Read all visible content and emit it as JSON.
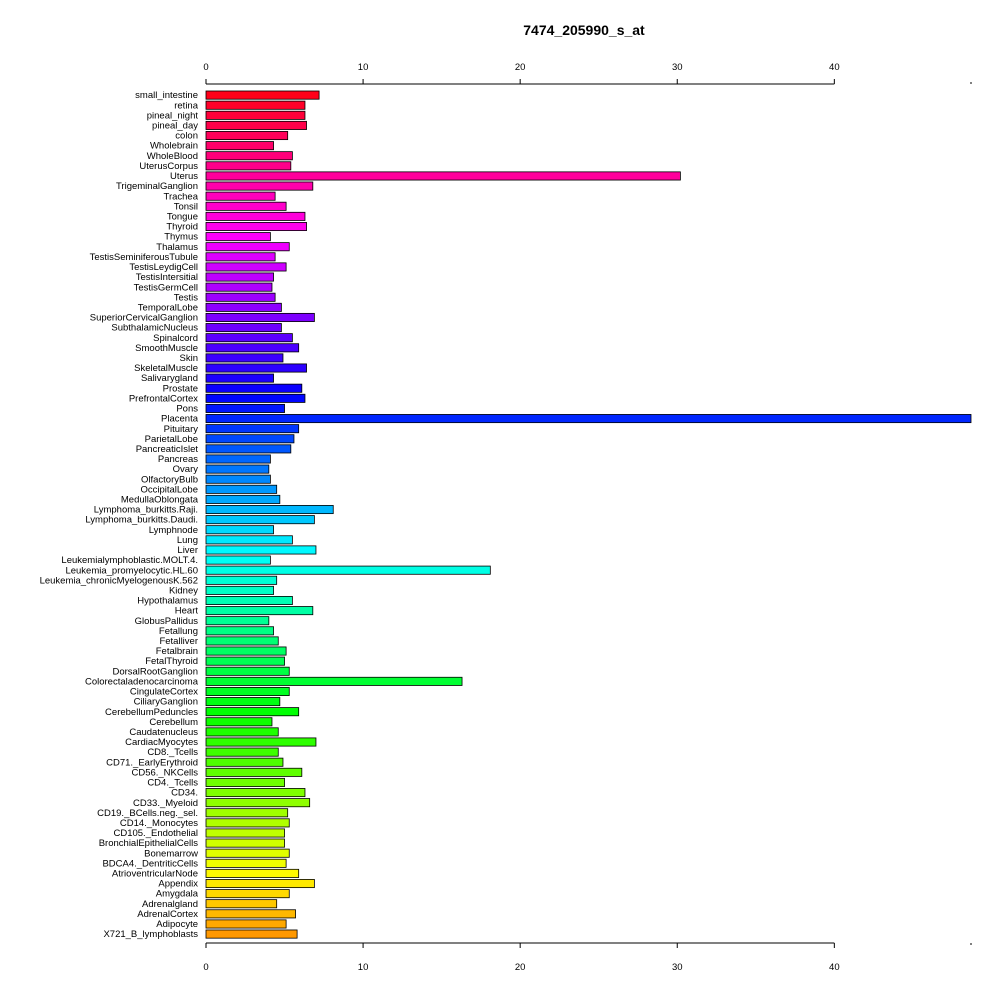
{
  "chart_data": {
    "type": "bar",
    "orientation": "horizontal",
    "title": "7474_205990_s_at",
    "xlabel": "",
    "ylabel": "",
    "xlim": [
      0,
      48.7
    ],
    "x_ticks": [
      0,
      10,
      20,
      30,
      40
    ],
    "grid": false,
    "legend": "none",
    "bar_stroke": "#000000",
    "categories": [
      "small_intestine",
      "retina",
      "pineal_night",
      "pineal_day",
      "colon",
      "Wholebrain",
      "WholeBlood",
      "UterusCorpus",
      "Uterus",
      "TrigeminalGanglion",
      "Trachea",
      "Tonsil",
      "Tongue",
      "Thyroid",
      "Thymus",
      "Thalamus",
      "TestisSeminiferousTubule",
      "TestisLeydigCell",
      "TestisIntersitial",
      "TestisGermCell",
      "Testis",
      "TemporalLobe",
      "SuperiorCervicalGanglion",
      "SubthalamicNucleus",
      "Spinalcord",
      "SmoothMuscle",
      "Skin",
      "SkeletalMuscle",
      "Salivarygland",
      "Prostate",
      "PrefrontalCortex",
      "Pons",
      "Placenta",
      "Pituitary",
      "ParietalLobe",
      "PancreaticIslet",
      "Pancreas",
      "Ovary",
      "OlfactoryBulb",
      "OccipitalLobe",
      "MedullaOblongata",
      "Lymphoma_burkitts.Raji.",
      "Lymphoma_burkitts.Daudi.",
      "Lymphnode",
      "Lung",
      "Liver",
      "Leukemialymphoblastic.MOLT.4.",
      "Leukemia_promyelocytic.HL.60",
      "Leukemia_chronicMyelogenousK.562",
      "Kidney",
      "Hypothalamus",
      "Heart",
      "GlobusPallidus",
      "Fetallung",
      "Fetalliver",
      "Fetalbrain",
      "FetalThyroid",
      "DorsalRootGanglion",
      "Colorectaladenocarcinoma",
      "CingulateCortex",
      "CiliaryGanglion",
      "CerebellumPeduncles",
      "Cerebellum",
      "Caudatenucleus",
      "CardiacMyocytes",
      "CD8._Tcells",
      "CD71._EarlyErythroid",
      "CD56._NKCells",
      "CD4._Tcells",
      "CD34.",
      "CD33._Myeloid",
      "CD19._BCells.neg._sel.",
      "CD14._Monocytes",
      "CD105._Endothelial",
      "BronchialEpithelialCells",
      "Bonemarrow",
      "BDCA4._DentriticCells",
      "AtrioventricularNode",
      "Appendix",
      "Amygdala",
      "Adrenalgland",
      "AdrenalCortex",
      "Adipocyte",
      "X721_B_lymphoblasts"
    ],
    "values": [
      7.2,
      6.3,
      6.3,
      6.4,
      5.2,
      4.3,
      5.5,
      5.4,
      30.2,
      6.8,
      4.4,
      5.1,
      6.3,
      6.4,
      4.1,
      5.3,
      4.4,
      5.1,
      4.3,
      4.2,
      4.4,
      4.8,
      6.9,
      4.8,
      5.5,
      5.9,
      4.9,
      6.4,
      4.3,
      6.1,
      6.3,
      5.0,
      48.7,
      5.9,
      5.6,
      5.4,
      4.1,
      4.0,
      4.1,
      4.5,
      4.7,
      8.1,
      6.9,
      4.3,
      5.5,
      7.0,
      4.1,
      18.1,
      4.5,
      4.3,
      5.5,
      6.8,
      4.0,
      4.3,
      4.6,
      5.1,
      5.0,
      5.3,
      16.3,
      5.3,
      4.7,
      5.9,
      4.2,
      4.6,
      7.0,
      4.6,
      4.9,
      6.1,
      5.0,
      6.3,
      6.6,
      5.2,
      5.3,
      5.0,
      5.0,
      5.3,
      5.1,
      5.9,
      6.9,
      5.3,
      4.5,
      5.7,
      5.1,
      5.8
    ],
    "colors": [
      "#FF0019",
      "#FF0029",
      "#FF0039",
      "#FF0049",
      "#FF005A",
      "#FF006A",
      "#FF007A",
      "#FF008A",
      "#FF009B",
      "#FF00AB",
      "#FF00BB",
      "#FF00CB",
      "#FF00DB",
      "#FF00EC",
      "#FF00FC",
      "#EF00FF",
      "#DE00FF",
      "#CE00FF",
      "#BE00FF",
      "#AE00FF",
      "#9D00FF",
      "#8D00FF",
      "#7D00FF",
      "#6D00FF",
      "#5C00FF",
      "#4C00FF",
      "#3C00FF",
      "#2C00FF",
      "#1C00FF",
      "#0B00FF",
      "#0006FF",
      "#0016FF",
      "#0026FF",
      "#0036FF",
      "#0047FF",
      "#0057FF",
      "#0067FF",
      "#0077FF",
      "#0088FF",
      "#0098FF",
      "#00A8FF",
      "#00B8FF",
      "#00C8FF",
      "#00D9FF",
      "#00E9FF",
      "#00F9FF",
      "#00FFF5",
      "#00FFE5",
      "#00FFD5",
      "#00FFC5",
      "#00FFB4",
      "#00FFA4",
      "#00FF94",
      "#00FF84",
      "#00FF73",
      "#00FF63",
      "#00FF53",
      "#00FF43",
      "#00FF32",
      "#00FF22",
      "#00FF12",
      "#00FF02",
      "#0EFF00",
      "#1EFF00",
      "#2EFF00",
      "#3EFF00",
      "#4EFF00",
      "#5FFF00",
      "#6FFF00",
      "#7FFF00",
      "#8FFF00",
      "#A0FF00",
      "#B0FF00",
      "#C0FF00",
      "#D0FF00",
      "#E1FF00",
      "#F1FF00",
      "#FFF900",
      "#FFE900",
      "#FFD900",
      "#FFC800",
      "#FFB800",
      "#FFA800",
      "#FF9800"
    ]
  }
}
